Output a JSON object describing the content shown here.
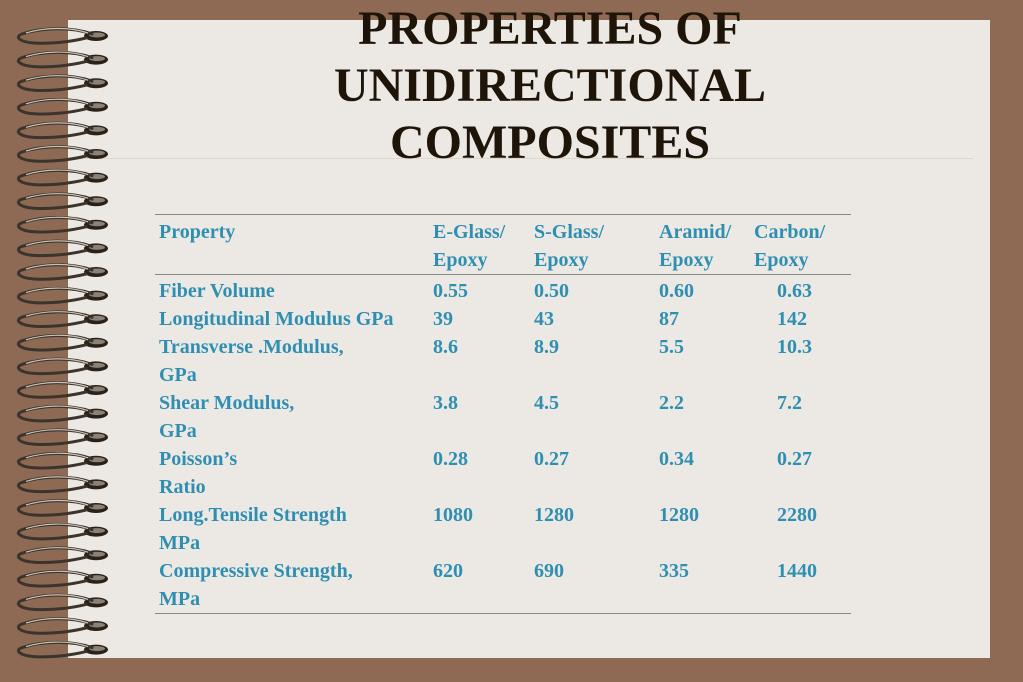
{
  "slide": {
    "title_lines": [
      "PROPERTIES OF",
      "UNIDIRECTIONAL",
      "COMPOSITES"
    ]
  },
  "table": {
    "headers": [
      [
        "Property"
      ],
      [
        "E-Glass/",
        "Epoxy"
      ],
      [
        "S-Glass/",
        "Epoxy"
      ],
      [
        "Aramid/",
        "Epoxy"
      ],
      [
        "Carbon/",
        "Epoxy"
      ]
    ],
    "rows": [
      {
        "property": [
          "Fiber Volume"
        ],
        "values": [
          "0.55",
          "0.50",
          "0.60",
          "0.63"
        ]
      },
      {
        "property": [
          "Longitudinal Modulus GPa"
        ],
        "values": [
          "39",
          "43",
          "87",
          "142"
        ]
      },
      {
        "property": [
          "Transverse .Modulus,",
          "GPa"
        ],
        "values": [
          "8.6",
          "8.9",
          "5.5",
          "10.3"
        ]
      },
      {
        "property": [
          "Shear Modulus,",
          "GPa"
        ],
        "values": [
          "3.8",
          "4.5",
          "2.2",
          "7.2"
        ]
      },
      {
        "property": [
          "Poisson’s",
          "Ratio"
        ],
        "values": [
          "0.28",
          "0.27",
          "0.34",
          "0.27"
        ]
      },
      {
        "property": [
          "Long.Tensile Strength",
          "MPa"
        ],
        "values": [
          "1080",
          "1280",
          "1280",
          "2280"
        ]
      },
      {
        "property": [
          "Compressive Strength,",
          "MPa"
        ],
        "values": [
          "620",
          "690",
          "335",
          "1440"
        ]
      }
    ]
  },
  "colors": {
    "background": "#8e6a54",
    "paper": "#ece9e4",
    "title": "#1f1408",
    "table_text": "#2f8fb2"
  },
  "icons": [
    "spiral-binding-icon"
  ]
}
